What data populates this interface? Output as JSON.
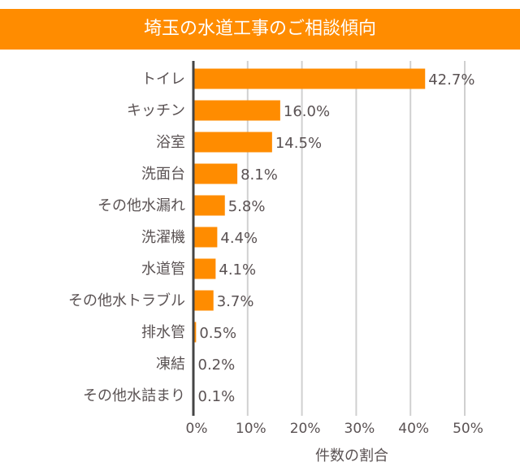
{
  "chart_data": {
    "type": "bar",
    "orientation": "horizontal",
    "title": "埼玉の水道工事のご相談傾向",
    "xlabel": "件数の割合",
    "ylabel": "",
    "categories": [
      "トイレ",
      "キッチン",
      "浴室",
      "洗面台",
      "その他水漏れ",
      "洗濯機",
      "水道管",
      "その他水トラブル",
      "排水管",
      "凍結",
      "その他水詰まり"
    ],
    "values": [
      42.7,
      16.0,
      14.5,
      8.1,
      5.8,
      4.4,
      4.1,
      3.7,
      0.5,
      0.2,
      0.1
    ],
    "data_labels": [
      "42.7%",
      "16.0%",
      "14.5%",
      "8.1%",
      "5.8%",
      "4.4%",
      "4.1%",
      "3.7%",
      "0.5%",
      "0.2%",
      "0.1%"
    ],
    "xlim": [
      0,
      50
    ],
    "xticks": [
      "0%",
      "10%",
      "20%",
      "30%",
      "40%",
      "50%"
    ],
    "grid": "vertical",
    "legend": "none",
    "colors": {
      "bar": "#ff8c00",
      "title_bg": "#ff8c00",
      "text": "#5a5253",
      "grid": "#d0d0d0",
      "axis": "#444444"
    }
  }
}
